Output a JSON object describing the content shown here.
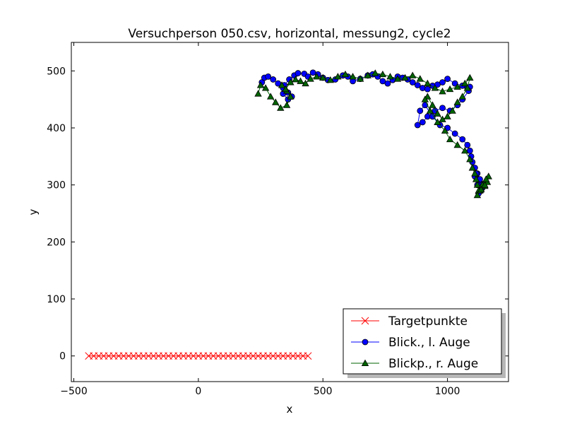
{
  "chart_data": {
    "type": "line",
    "title": "Versuchperson 050.csv, horizontal, messung2, cycle2",
    "xlabel": "x",
    "ylabel": "y",
    "xlim": [
      -510,
      1245
    ],
    "ylim": [
      -45,
      550
    ],
    "xticks": [
      -500,
      0,
      500,
      1000
    ],
    "yticks": [
      0,
      100,
      200,
      300,
      400,
      500
    ],
    "grid": false,
    "legend_position": "lower-right",
    "series": [
      {
        "name": "Targetpunkte",
        "color": "#ff0000",
        "marker": "x",
        "x": [
          -440,
          -420,
          -400,
          -380,
          -360,
          -340,
          -320,
          -300,
          -280,
          -260,
          -240,
          -220,
          -200,
          -180,
          -160,
          -140,
          -120,
          -100,
          -80,
          -60,
          -40,
          -20,
          0,
          20,
          40,
          60,
          80,
          100,
          120,
          140,
          160,
          180,
          200,
          220,
          240,
          260,
          280,
          300,
          320,
          340,
          360,
          380,
          400,
          420,
          440
        ],
        "y": [
          0,
          0,
          0,
          0,
          0,
          0,
          0,
          0,
          0,
          0,
          0,
          0,
          0,
          0,
          0,
          0,
          0,
          0,
          0,
          0,
          0,
          0,
          0,
          0,
          0,
          0,
          0,
          0,
          0,
          0,
          0,
          0,
          0,
          0,
          0,
          0,
          0,
          0,
          0,
          0,
          0,
          0,
          0,
          0,
          0
        ]
      },
      {
        "name": "Blick., l. Auge",
        "color": "#0000ff",
        "marker": "o",
        "x": [
          255,
          265,
          280,
          300,
          320,
          340,
          360,
          375,
          360,
          340,
          345,
          365,
          385,
          400,
          425,
          440,
          460,
          480,
          500,
          520,
          550,
          580,
          600,
          620,
          650,
          680,
          700,
          720,
          740,
          760,
          780,
          800,
          820,
          840,
          860,
          880,
          900,
          920,
          940,
          960,
          980,
          1000,
          1030,
          1060,
          1080,
          1090,
          1085,
          1060,
          1040,
          1010,
          980,
          950,
          920,
          900,
          880,
          890,
          910,
          940,
          970,
          1000,
          1030,
          1060,
          1080,
          1090,
          1095,
          1100,
          1110,
          1120,
          1125,
          1130,
          1140,
          1140,
          1135,
          1120,
          1110,
          1115,
          1130,
          1140,
          1135,
          1125
        ],
        "y": [
          480,
          488,
          490,
          485,
          478,
          470,
          462,
          455,
          450,
          460,
          475,
          485,
          492,
          496,
          495,
          490,
          497,
          494,
          488,
          484,
          485,
          492,
          490,
          482,
          486,
          492,
          494,
          490,
          482,
          478,
          484,
          490,
          488,
          485,
          480,
          475,
          470,
          468,
          474,
          476,
          480,
          486,
          478,
          474,
          470,
          472,
          465,
          450,
          440,
          430,
          435,
          430,
          420,
          410,
          405,
          430,
          440,
          420,
          405,
          400,
          390,
          380,
          370,
          360,
          350,
          340,
          330,
          320,
          310,
          305,
          300,
          295,
          290,
          300,
          315,
          320,
          310,
          295,
          290,
          285
        ]
      },
      {
        "name": "Blickp., r. Auge",
        "color": "#006400",
        "marker": "^",
        "x": [
          240,
          250,
          270,
          290,
          310,
          330,
          355,
          370,
          355,
          335,
          350,
          370,
          390,
          410,
          430,
          450,
          475,
          500,
          530,
          560,
          590,
          620,
          650,
          680,
          710,
          740,
          770,
          800,
          830,
          860,
          890,
          920,
          950,
          980,
          1010,
          1040,
          1070,
          1090,
          1080,
          1060,
          1040,
          1020,
          1000,
          980,
          960,
          940,
          920,
          910,
          930,
          960,
          990,
          1010,
          1040,
          1070,
          1090,
          1100,
          1110,
          1115,
          1120,
          1130,
          1150,
          1160,
          1165,
          1155,
          1140,
          1125,
          1120,
          1135,
          1150
        ],
        "y": [
          460,
          475,
          470,
          455,
          445,
          435,
          440,
          455,
          465,
          475,
          468,
          480,
          485,
          482,
          478,
          486,
          490,
          488,
          484,
          490,
          494,
          490,
          486,
          492,
          496,
          494,
          490,
          486,
          488,
          492,
          486,
          478,
          470,
          464,
          468,
          472,
          478,
          488,
          470,
          455,
          445,
          430,
          420,
          415,
          425,
          440,
          455,
          450,
          430,
          410,
          395,
          380,
          370,
          360,
          345,
          330,
          320,
          310,
          300,
          290,
          298,
          305,
          315,
          310,
          300,
          290,
          282,
          292,
          300
        ]
      }
    ]
  }
}
